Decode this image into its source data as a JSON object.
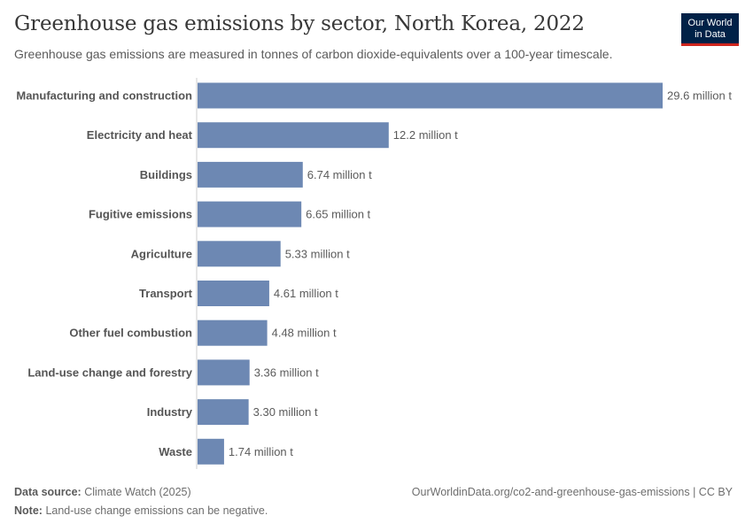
{
  "header": {
    "title": "Greenhouse gas emissions by sector, North Korea, 2022",
    "subtitle": "Greenhouse gas emissions are measured in tonnes of carbon dioxide-equivalents over a 100-year timescale.",
    "logo_line1": "Our World",
    "logo_line2": "in Data"
  },
  "footer": {
    "source_label": "Data source:",
    "source_value": "Climate Watch (2025)",
    "url": "OurWorldinData.org/co2-and-greenhouse-gas-emissions | CC BY",
    "note_label": "Note:",
    "note_value": "Land-use change emissions can be negative."
  },
  "colors": {
    "bar": "#6d88b3",
    "axis": "#cccccc",
    "logo_bg": "#002147",
    "logo_accent": "#ce261e"
  },
  "chart_data": {
    "type": "bar",
    "orientation": "horizontal",
    "title": "Greenhouse gas emissions by sector, North Korea, 2022",
    "unit": "million t",
    "categories": [
      "Manufacturing and construction",
      "Electricity and heat",
      "Buildings",
      "Fugitive emissions",
      "Agriculture",
      "Transport",
      "Other fuel combustion",
      "Land-use change and forestry",
      "Industry",
      "Waste"
    ],
    "values": [
      29.6,
      12.2,
      6.74,
      6.65,
      5.33,
      4.61,
      4.48,
      3.36,
      3.3,
      1.74
    ],
    "value_labels": [
      "29.6 million t",
      "12.2 million t",
      "6.74 million t",
      "6.65 million t",
      "5.33 million t",
      "4.61 million t",
      "4.48 million t",
      "3.36 million t",
      "3.30 million t",
      "1.74 million t"
    ],
    "xlim": [
      0,
      29.6
    ],
    "grid": false,
    "legend": "none"
  }
}
